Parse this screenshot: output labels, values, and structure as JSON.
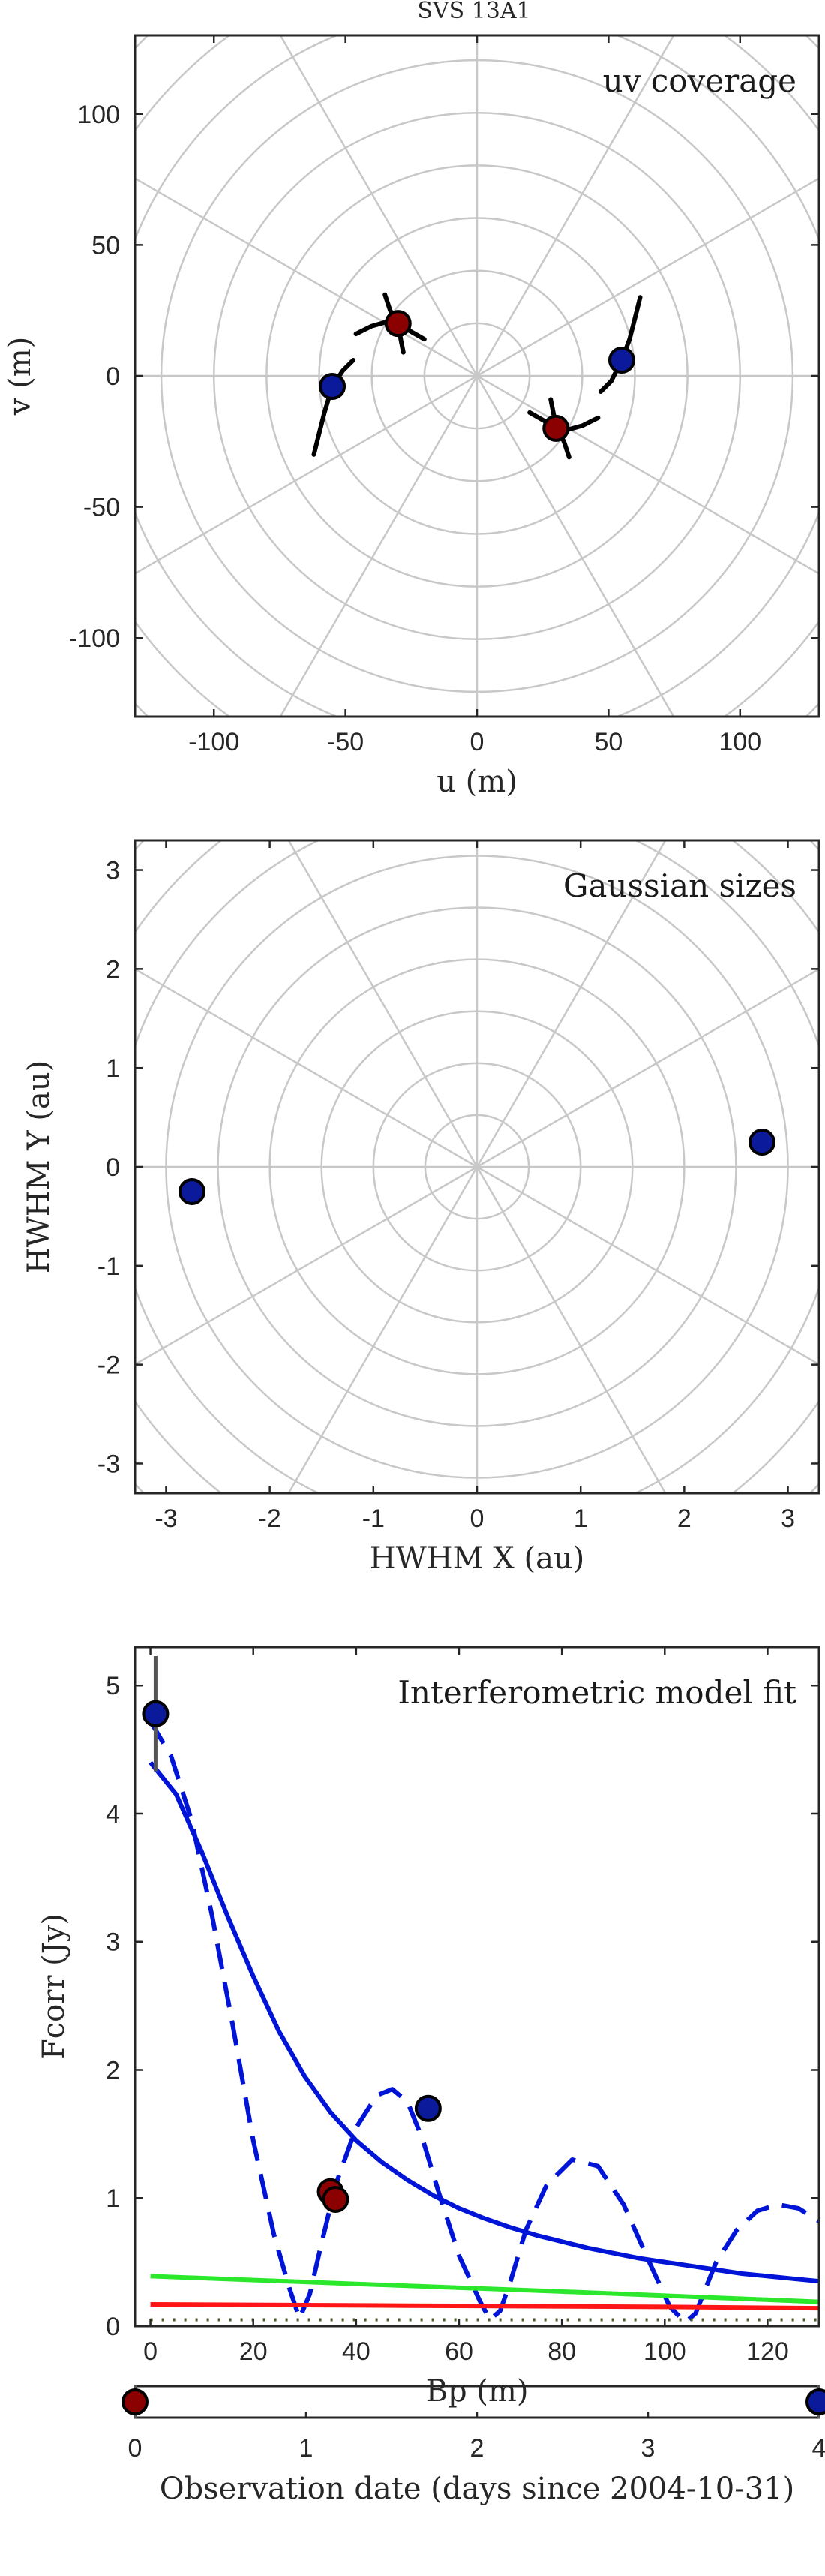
{
  "figure_title": "SVS 13A1",
  "chart_data": [
    {
      "type": "scatter",
      "annotation": "uv coverage",
      "xlabel": "u (m)",
      "ylabel": "v (m)",
      "xlim": [
        -130,
        130
      ],
      "ylim": [
        -130,
        130
      ],
      "xticks": [
        -100,
        -50,
        0,
        50,
        100
      ],
      "yticks": [
        -100,
        -50,
        0,
        50,
        100
      ],
      "grid": "polar",
      "polar_grid": {
        "ring_step": 20,
        "spoke_step_deg": 30
      },
      "colors": {
        "epoch1": "#8b0000",
        "epoch2": "#0a1a9a",
        "track": "#000000",
        "grid": "#c8c8c8"
      },
      "series": [
        {
          "color": "#8b0000",
          "points": [
            [
              -30,
              20
            ],
            [
              30,
              -20
            ]
          ]
        },
        {
          "color": "#0a1a9a",
          "points": [
            [
              -55,
              -4
            ],
            [
              55,
              6
            ]
          ]
        }
      ],
      "tracks": [
        [
          [
            -46,
            16
          ],
          [
            -40,
            19
          ],
          [
            -33,
            21
          ],
          [
            -27,
            18
          ],
          [
            -20,
            14
          ]
        ],
        [
          [
            -35,
            31
          ],
          [
            -33,
            25
          ],
          [
            -30,
            20
          ],
          [
            -29,
            14
          ],
          [
            -28,
            9
          ]
        ],
        [
          [
            20,
            -14
          ],
          [
            27,
            -18
          ],
          [
            33,
            -21
          ],
          [
            40,
            -19
          ],
          [
            46,
            -16
          ]
        ],
        [
          [
            28,
            -9
          ],
          [
            29,
            -14
          ],
          [
            30,
            -20
          ],
          [
            33,
            -25
          ],
          [
            35,
            -31
          ]
        ],
        [
          [
            -62,
            -30
          ],
          [
            -60,
            -22
          ],
          [
            -58,
            -14
          ],
          [
            -55,
            -4
          ],
          [
            -51,
            2
          ],
          [
            -47,
            6
          ]
        ],
        [
          [
            47,
            -6
          ],
          [
            51,
            -2
          ],
          [
            55,
            6
          ],
          [
            58,
            14
          ],
          [
            60,
            22
          ],
          [
            62,
            30
          ]
        ]
      ]
    },
    {
      "type": "scatter",
      "annotation": "Gaussian sizes",
      "xlabel": "HWHM X (au)",
      "ylabel": "HWHM Y (au)",
      "xlim": [
        -3.3,
        3.3
      ],
      "ylim": [
        -3.3,
        3.3
      ],
      "xticks": [
        -3,
        -2,
        -1,
        0,
        1,
        2,
        3
      ],
      "yticks": [
        -3,
        -2,
        -1,
        0,
        1,
        2,
        3
      ],
      "grid": "polar",
      "polar_grid": {
        "ring_step": 0.5,
        "spoke_step_deg": 30
      },
      "series": [
        {
          "color": "#0a1a9a",
          "points": [
            [
              2.75,
              0.25
            ],
            [
              -2.75,
              -0.25
            ]
          ]
        }
      ]
    },
    {
      "type": "line",
      "annotation": "Interferometric model fit",
      "xlabel": "Bp (m)",
      "ylabel": "Fcorr (Jy)",
      "xlim": [
        -3,
        130
      ],
      "ylim": [
        0,
        5.3
      ],
      "xticks": [
        0,
        20,
        40,
        60,
        80,
        100,
        120
      ],
      "yticks": [
        0,
        1,
        2,
        3,
        4,
        5
      ],
      "points": [
        {
          "x": 1,
          "y": 4.78,
          "color": "#0a1a9a",
          "err": 0.45
        },
        {
          "x": 54,
          "y": 1.7,
          "color": "#0a1a9a",
          "err": 0.06
        },
        {
          "x": 35,
          "y": 1.05,
          "color": "#8b0000",
          "err": 0.08
        },
        {
          "x": 36,
          "y": 0.99,
          "color": "#8b0000",
          "err": 0.08
        }
      ],
      "curves": [
        {
          "color": "#0014d8",
          "style": "solid",
          "x": [
            0,
            5,
            10,
            15,
            20,
            25,
            30,
            35,
            40,
            45,
            50,
            55,
            60,
            65,
            70,
            75,
            80,
            85,
            90,
            95,
            100,
            105,
            110,
            115,
            120,
            125,
            130
          ],
          "y": [
            4.4,
            4.15,
            3.7,
            3.2,
            2.73,
            2.3,
            1.95,
            1.67,
            1.45,
            1.28,
            1.14,
            1.02,
            0.92,
            0.84,
            0.77,
            0.71,
            0.66,
            0.61,
            0.57,
            0.53,
            0.5,
            0.47,
            0.44,
            0.41,
            0.39,
            0.37,
            0.35
          ]
        },
        {
          "color": "#0014d8",
          "style": "dashed",
          "x": [
            0,
            4,
            8,
            12,
            16,
            20,
            24,
            27,
            29,
            31,
            33,
            36,
            40,
            44,
            47,
            50,
            53,
            56,
            60,
            64,
            66,
            68,
            70,
            73,
            77,
            82,
            87,
            92,
            97,
            101,
            104,
            106,
            108,
            110,
            114,
            118,
            122,
            126,
            130
          ],
          "y": [
            4.72,
            4.45,
            3.95,
            3.2,
            2.35,
            1.45,
            0.72,
            0.3,
            0.06,
            0.25,
            0.6,
            1.1,
            1.55,
            1.8,
            1.85,
            1.75,
            1.45,
            1.05,
            0.55,
            0.2,
            0.05,
            0.12,
            0.35,
            0.75,
            1.1,
            1.3,
            1.25,
            0.95,
            0.5,
            0.15,
            0.03,
            0.1,
            0.3,
            0.5,
            0.75,
            0.9,
            0.95,
            0.92,
            0.82
          ]
        },
        {
          "color": "#2ce82c",
          "style": "solid",
          "x": [
            0,
            40,
            80,
            130
          ],
          "y": [
            0.39,
            0.33,
            0.27,
            0.19
          ]
        },
        {
          "color": "#ff1515",
          "style": "solid",
          "x": [
            0,
            50,
            100,
            130
          ],
          "y": [
            0.17,
            0.16,
            0.15,
            0.14
          ]
        },
        {
          "color": "#4a5a2a",
          "style": "dotted",
          "x": [
            0,
            130
          ],
          "y": [
            0.05,
            0.05
          ]
        }
      ]
    },
    {
      "type": "scatter",
      "xlabel": "Observation date (days since 2004-10-31)",
      "xlim": [
        0,
        4
      ],
      "xticks": [
        0,
        1,
        2,
        3,
        4
      ],
      "points": [
        {
          "x": 0,
          "color": "#8b0000"
        },
        {
          "x": 4,
          "color": "#0a1a9a"
        }
      ]
    }
  ]
}
